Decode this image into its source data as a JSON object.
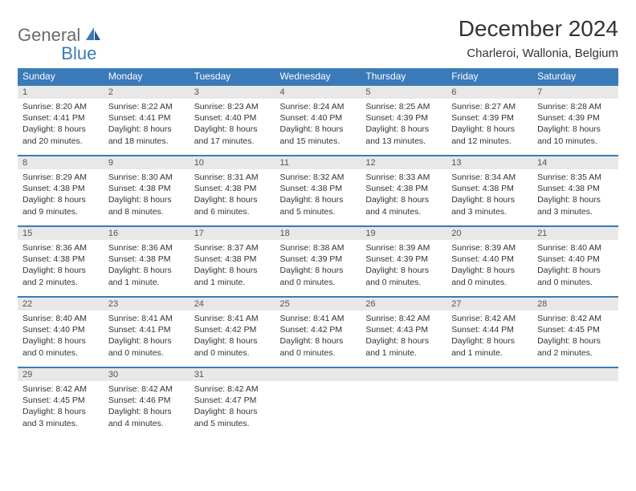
{
  "logo": {
    "part1": "General",
    "part2": "Blue"
  },
  "title": "December 2024",
  "location": "Charleroi, Wallonia, Belgium",
  "colors": {
    "header_bg": "#3a7ab8",
    "daynum_bg": "#e8e8e8",
    "border": "#3a7ab8",
    "text": "#333333",
    "background": "#ffffff"
  },
  "day_headers": [
    "Sunday",
    "Monday",
    "Tuesday",
    "Wednesday",
    "Thursday",
    "Friday",
    "Saturday"
  ],
  "weeks": [
    [
      {
        "n": "1",
        "sr": "Sunrise: 8:20 AM",
        "ss": "Sunset: 4:41 PM",
        "d1": "Daylight: 8 hours",
        "d2": "and 20 minutes."
      },
      {
        "n": "2",
        "sr": "Sunrise: 8:22 AM",
        "ss": "Sunset: 4:41 PM",
        "d1": "Daylight: 8 hours",
        "d2": "and 18 minutes."
      },
      {
        "n": "3",
        "sr": "Sunrise: 8:23 AM",
        "ss": "Sunset: 4:40 PM",
        "d1": "Daylight: 8 hours",
        "d2": "and 17 minutes."
      },
      {
        "n": "4",
        "sr": "Sunrise: 8:24 AM",
        "ss": "Sunset: 4:40 PM",
        "d1": "Daylight: 8 hours",
        "d2": "and 15 minutes."
      },
      {
        "n": "5",
        "sr": "Sunrise: 8:25 AM",
        "ss": "Sunset: 4:39 PM",
        "d1": "Daylight: 8 hours",
        "d2": "and 13 minutes."
      },
      {
        "n": "6",
        "sr": "Sunrise: 8:27 AM",
        "ss": "Sunset: 4:39 PM",
        "d1": "Daylight: 8 hours",
        "d2": "and 12 minutes."
      },
      {
        "n": "7",
        "sr": "Sunrise: 8:28 AM",
        "ss": "Sunset: 4:39 PM",
        "d1": "Daylight: 8 hours",
        "d2": "and 10 minutes."
      }
    ],
    [
      {
        "n": "8",
        "sr": "Sunrise: 8:29 AM",
        "ss": "Sunset: 4:38 PM",
        "d1": "Daylight: 8 hours",
        "d2": "and 9 minutes."
      },
      {
        "n": "9",
        "sr": "Sunrise: 8:30 AM",
        "ss": "Sunset: 4:38 PM",
        "d1": "Daylight: 8 hours",
        "d2": "and 8 minutes."
      },
      {
        "n": "10",
        "sr": "Sunrise: 8:31 AM",
        "ss": "Sunset: 4:38 PM",
        "d1": "Daylight: 8 hours",
        "d2": "and 6 minutes."
      },
      {
        "n": "11",
        "sr": "Sunrise: 8:32 AM",
        "ss": "Sunset: 4:38 PM",
        "d1": "Daylight: 8 hours",
        "d2": "and 5 minutes."
      },
      {
        "n": "12",
        "sr": "Sunrise: 8:33 AM",
        "ss": "Sunset: 4:38 PM",
        "d1": "Daylight: 8 hours",
        "d2": "and 4 minutes."
      },
      {
        "n": "13",
        "sr": "Sunrise: 8:34 AM",
        "ss": "Sunset: 4:38 PM",
        "d1": "Daylight: 8 hours",
        "d2": "and 3 minutes."
      },
      {
        "n": "14",
        "sr": "Sunrise: 8:35 AM",
        "ss": "Sunset: 4:38 PM",
        "d1": "Daylight: 8 hours",
        "d2": "and 3 minutes."
      }
    ],
    [
      {
        "n": "15",
        "sr": "Sunrise: 8:36 AM",
        "ss": "Sunset: 4:38 PM",
        "d1": "Daylight: 8 hours",
        "d2": "and 2 minutes."
      },
      {
        "n": "16",
        "sr": "Sunrise: 8:36 AM",
        "ss": "Sunset: 4:38 PM",
        "d1": "Daylight: 8 hours",
        "d2": "and 1 minute."
      },
      {
        "n": "17",
        "sr": "Sunrise: 8:37 AM",
        "ss": "Sunset: 4:38 PM",
        "d1": "Daylight: 8 hours",
        "d2": "and 1 minute."
      },
      {
        "n": "18",
        "sr": "Sunrise: 8:38 AM",
        "ss": "Sunset: 4:39 PM",
        "d1": "Daylight: 8 hours",
        "d2": "and 0 minutes."
      },
      {
        "n": "19",
        "sr": "Sunrise: 8:39 AM",
        "ss": "Sunset: 4:39 PM",
        "d1": "Daylight: 8 hours",
        "d2": "and 0 minutes."
      },
      {
        "n": "20",
        "sr": "Sunrise: 8:39 AM",
        "ss": "Sunset: 4:40 PM",
        "d1": "Daylight: 8 hours",
        "d2": "and 0 minutes."
      },
      {
        "n": "21",
        "sr": "Sunrise: 8:40 AM",
        "ss": "Sunset: 4:40 PM",
        "d1": "Daylight: 8 hours",
        "d2": "and 0 minutes."
      }
    ],
    [
      {
        "n": "22",
        "sr": "Sunrise: 8:40 AM",
        "ss": "Sunset: 4:40 PM",
        "d1": "Daylight: 8 hours",
        "d2": "and 0 minutes."
      },
      {
        "n": "23",
        "sr": "Sunrise: 8:41 AM",
        "ss": "Sunset: 4:41 PM",
        "d1": "Daylight: 8 hours",
        "d2": "and 0 minutes."
      },
      {
        "n": "24",
        "sr": "Sunrise: 8:41 AM",
        "ss": "Sunset: 4:42 PM",
        "d1": "Daylight: 8 hours",
        "d2": "and 0 minutes."
      },
      {
        "n": "25",
        "sr": "Sunrise: 8:41 AM",
        "ss": "Sunset: 4:42 PM",
        "d1": "Daylight: 8 hours",
        "d2": "and 0 minutes."
      },
      {
        "n": "26",
        "sr": "Sunrise: 8:42 AM",
        "ss": "Sunset: 4:43 PM",
        "d1": "Daylight: 8 hours",
        "d2": "and 1 minute."
      },
      {
        "n": "27",
        "sr": "Sunrise: 8:42 AM",
        "ss": "Sunset: 4:44 PM",
        "d1": "Daylight: 8 hours",
        "d2": "and 1 minute."
      },
      {
        "n": "28",
        "sr": "Sunrise: 8:42 AM",
        "ss": "Sunset: 4:45 PM",
        "d1": "Daylight: 8 hours",
        "d2": "and 2 minutes."
      }
    ],
    [
      {
        "n": "29",
        "sr": "Sunrise: 8:42 AM",
        "ss": "Sunset: 4:45 PM",
        "d1": "Daylight: 8 hours",
        "d2": "and 3 minutes."
      },
      {
        "n": "30",
        "sr": "Sunrise: 8:42 AM",
        "ss": "Sunset: 4:46 PM",
        "d1": "Daylight: 8 hours",
        "d2": "and 4 minutes."
      },
      {
        "n": "31",
        "sr": "Sunrise: 8:42 AM",
        "ss": "Sunset: 4:47 PM",
        "d1": "Daylight: 8 hours",
        "d2": "and 5 minutes."
      },
      {
        "n": "",
        "sr": "",
        "ss": "",
        "d1": "",
        "d2": ""
      },
      {
        "n": "",
        "sr": "",
        "ss": "",
        "d1": "",
        "d2": ""
      },
      {
        "n": "",
        "sr": "",
        "ss": "",
        "d1": "",
        "d2": ""
      },
      {
        "n": "",
        "sr": "",
        "ss": "",
        "d1": "",
        "d2": ""
      }
    ]
  ]
}
